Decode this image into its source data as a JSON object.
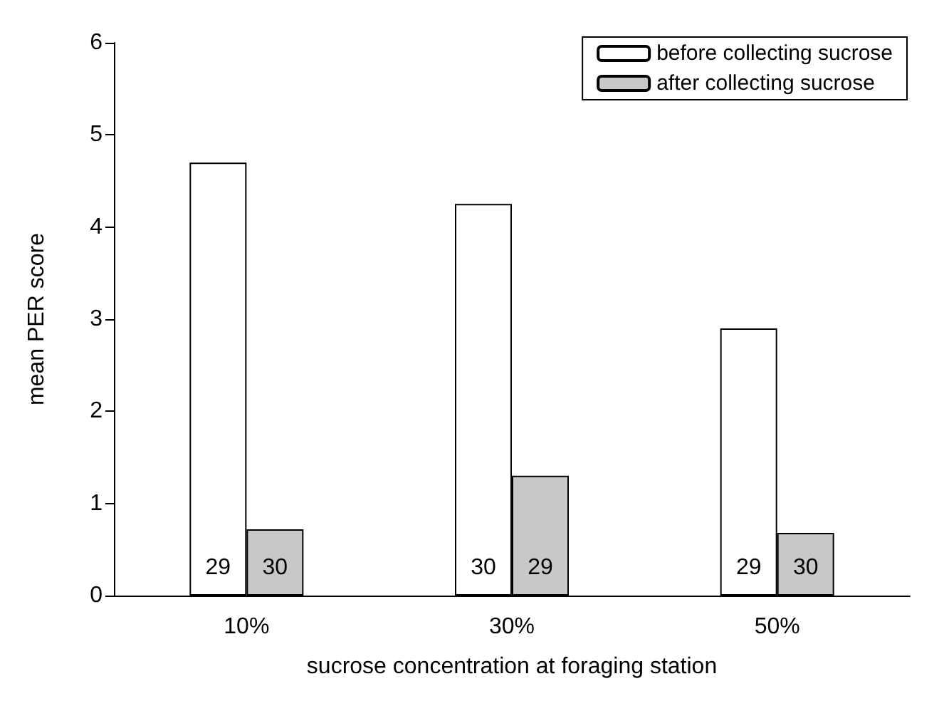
{
  "chart_data": {
    "type": "bar",
    "xlabel": "sucrose concentration at foraging station",
    "ylabel": "mean PER score",
    "categories": [
      "10%",
      "30%",
      "50%"
    ],
    "series": [
      {
        "name": "before collecting sucrose",
        "color": "#ffffff",
        "values": [
          4.7,
          4.25,
          2.9
        ]
      },
      {
        "name": "after collecting sucrose",
        "color": "#c8c8c8",
        "values": [
          0.72,
          1.3,
          0.68
        ]
      }
    ],
    "annotations": [
      {
        "text": "29",
        "x": "10%",
        "y": 0.3
      },
      {
        "text": "30",
        "x": "10%",
        "y": 0.3
      },
      {
        "text": "30",
        "x": "30%",
        "y": 0.3
      },
      {
        "text": "29",
        "x": "30%",
        "y": 0.3
      },
      {
        "text": "29",
        "x": "50%",
        "y": 0.3
      },
      {
        "text": "30",
        "x": "50%",
        "y": 0.3
      }
    ],
    "ylim": [
      0,
      6
    ],
    "yticks": [
      0,
      1,
      2,
      3,
      4,
      5,
      6
    ],
    "grid": false,
    "legend": "top right"
  }
}
